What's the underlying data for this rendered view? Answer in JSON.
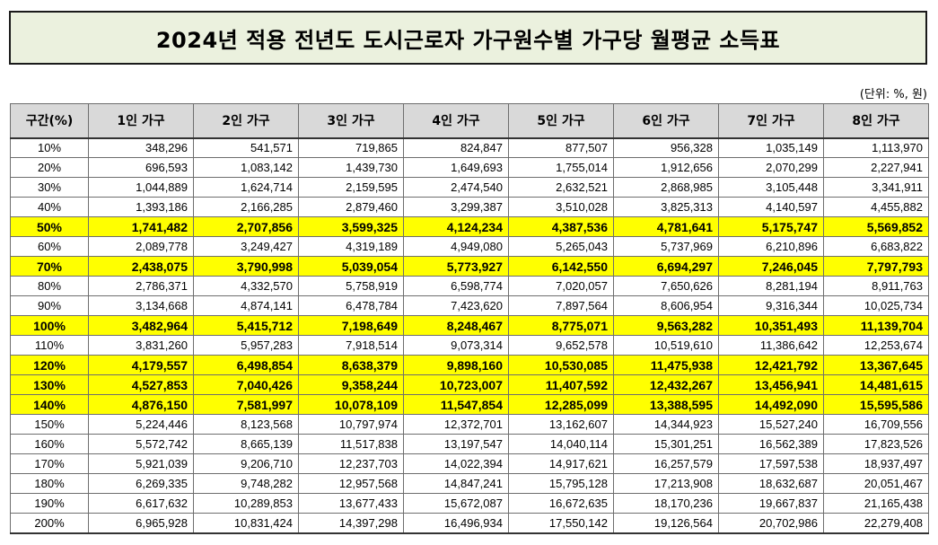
{
  "title": "2024년 적용 전년도 도시근로자 가구원수별 가구당 월평균 소득표",
  "unit_note": "(단위: %, 원)",
  "colors": {
    "title_bg": "#ebf1de",
    "header_bg": "#d9d9d9",
    "highlight": "#ffff00"
  },
  "headers": [
    "구간(%)",
    "1인 가구",
    "2인 가구",
    "3인 가구",
    "4인 가구",
    "5인 가구",
    "6인 가구",
    "7인 가구",
    "8인 가구"
  ],
  "rows": [
    {
      "label": "10%",
      "values": [
        "348,296",
        "541,571",
        "719,865",
        "824,847",
        "877,507",
        "956,328",
        "1,035,149",
        "1,113,970"
      ],
      "highlight": false
    },
    {
      "label": "20%",
      "values": [
        "696,593",
        "1,083,142",
        "1,439,730",
        "1,649,693",
        "1,755,014",
        "1,912,656",
        "2,070,299",
        "2,227,941"
      ],
      "highlight": false
    },
    {
      "label": "30%",
      "values": [
        "1,044,889",
        "1,624,714",
        "2,159,595",
        "2,474,540",
        "2,632,521",
        "2,868,985",
        "3,105,448",
        "3,341,911"
      ],
      "highlight": false
    },
    {
      "label": "40%",
      "values": [
        "1,393,186",
        "2,166,285",
        "2,879,460",
        "3,299,387",
        "3,510,028",
        "3,825,313",
        "4,140,597",
        "4,455,882"
      ],
      "highlight": false
    },
    {
      "label": "50%",
      "values": [
        "1,741,482",
        "2,707,856",
        "3,599,325",
        "4,124,234",
        "4,387,536",
        "4,781,641",
        "5,175,747",
        "5,569,852"
      ],
      "highlight": true
    },
    {
      "label": "60%",
      "values": [
        "2,089,778",
        "3,249,427",
        "4,319,189",
        "4,949,080",
        "5,265,043",
        "5,737,969",
        "6,210,896",
        "6,683,822"
      ],
      "highlight": false
    },
    {
      "label": "70%",
      "values": [
        "2,438,075",
        "3,790,998",
        "5,039,054",
        "5,773,927",
        "6,142,550",
        "6,694,297",
        "7,246,045",
        "7,797,793"
      ],
      "highlight": true
    },
    {
      "label": "80%",
      "values": [
        "2,786,371",
        "4,332,570",
        "5,758,919",
        "6,598,774",
        "7,020,057",
        "7,650,626",
        "8,281,194",
        "8,911,763"
      ],
      "highlight": false
    },
    {
      "label": "90%",
      "values": [
        "3,134,668",
        "4,874,141",
        "6,478,784",
        "7,423,620",
        "7,897,564",
        "8,606,954",
        "9,316,344",
        "10,025,734"
      ],
      "highlight": false
    },
    {
      "label": "100%",
      "values": [
        "3,482,964",
        "5,415,712",
        "7,198,649",
        "8,248,467",
        "8,775,071",
        "9,563,282",
        "10,351,493",
        "11,139,704"
      ],
      "highlight": true
    },
    {
      "label": "110%",
      "values": [
        "3,831,260",
        "5,957,283",
        "7,918,514",
        "9,073,314",
        "9,652,578",
        "10,519,610",
        "11,386,642",
        "12,253,674"
      ],
      "highlight": false
    },
    {
      "label": "120%",
      "values": [
        "4,179,557",
        "6,498,854",
        "8,638,379",
        "9,898,160",
        "10,530,085",
        "11,475,938",
        "12,421,792",
        "13,367,645"
      ],
      "highlight": true
    },
    {
      "label": "130%",
      "values": [
        "4,527,853",
        "7,040,426",
        "9,358,244",
        "10,723,007",
        "11,407,592",
        "12,432,267",
        "13,456,941",
        "14,481,615"
      ],
      "highlight": true
    },
    {
      "label": "140%",
      "values": [
        "4,876,150",
        "7,581,997",
        "10,078,109",
        "11,547,854",
        "12,285,099",
        "13,388,595",
        "14,492,090",
        "15,595,586"
      ],
      "highlight": true
    },
    {
      "label": "150%",
      "values": [
        "5,224,446",
        "8,123,568",
        "10,797,974",
        "12,372,701",
        "13,162,607",
        "14,344,923",
        "15,527,240",
        "16,709,556"
      ],
      "highlight": false
    },
    {
      "label": "160%",
      "values": [
        "5,572,742",
        "8,665,139",
        "11,517,838",
        "13,197,547",
        "14,040,114",
        "15,301,251",
        "16,562,389",
        "17,823,526"
      ],
      "highlight": false
    },
    {
      "label": "170%",
      "values": [
        "5,921,039",
        "9,206,710",
        "12,237,703",
        "14,022,394",
        "14,917,621",
        "16,257,579",
        "17,597,538",
        "18,937,497"
      ],
      "highlight": false
    },
    {
      "label": "180%",
      "values": [
        "6,269,335",
        "9,748,282",
        "12,957,568",
        "14,847,241",
        "15,795,128",
        "17,213,908",
        "18,632,687",
        "20,051,467"
      ],
      "highlight": false
    },
    {
      "label": "190%",
      "values": [
        "6,617,632",
        "10,289,853",
        "13,677,433",
        "15,672,087",
        "16,672,635",
        "18,170,236",
        "19,667,837",
        "21,165,438"
      ],
      "highlight": false
    },
    {
      "label": "200%",
      "values": [
        "6,965,928",
        "10,831,424",
        "14,397,298",
        "16,496,934",
        "17,550,142",
        "19,126,564",
        "20,702,986",
        "22,279,408"
      ],
      "highlight": false
    }
  ]
}
